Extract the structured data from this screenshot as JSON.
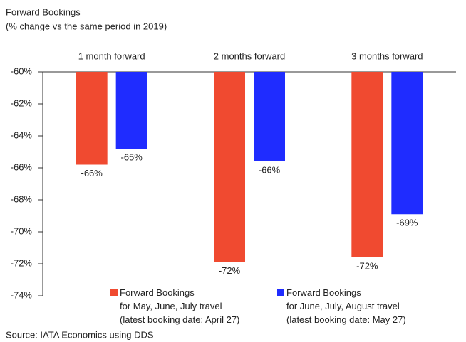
{
  "chart_data": {
    "type": "bar",
    "title": "Forward Bookings",
    "subtitle": "(% change vs the same period in 2019)",
    "source": "Source: IATA Economics using DDS",
    "categories": [
      "1 month forward",
      "2 months forward",
      "3 months forward"
    ],
    "series": [
      {
        "name": "Forward Bookings\nfor May, June, July travel\n(latest booking date: April 27)",
        "color": "#f04a30",
        "values": [
          -65.8,
          -71.9,
          -71.6
        ],
        "value_labels": [
          "-66%",
          "-72%",
          "-72%"
        ]
      },
      {
        "name": "Forward Bookings\nfor June, July, August travel\n(latest booking date: May 27)",
        "color": "#1f2cff",
        "values": [
          -64.8,
          -65.6,
          -68.9
        ],
        "value_labels": [
          "-65%",
          "-66%",
          "-69%"
        ]
      }
    ],
    "ylim": [
      -74,
      -60
    ],
    "yticks": [
      {
        "value": -60,
        "label": "-60%"
      },
      {
        "value": -62,
        "label": "-62%"
      },
      {
        "value": -64,
        "label": "-64%"
      },
      {
        "value": -66,
        "label": "-66%"
      },
      {
        "value": -68,
        "label": "-68%"
      },
      {
        "value": -70,
        "label": "-70%"
      },
      {
        "value": -72,
        "label": "-72%"
      },
      {
        "value": -74,
        "label": "-74%"
      }
    ]
  }
}
